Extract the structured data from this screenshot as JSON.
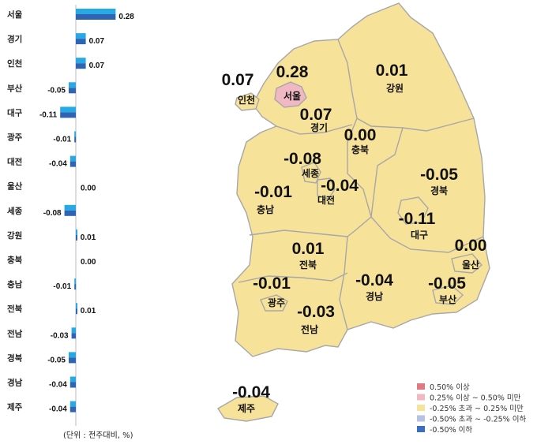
{
  "chart_data": [
    {
      "type": "bar",
      "orientation": "horizontal",
      "categories": [
        "서울",
        "경기",
        "인천",
        "부산",
        "대구",
        "광주",
        "대전",
        "울산",
        "세종",
        "강원",
        "충북",
        "충남",
        "전북",
        "전남",
        "경북",
        "경남",
        "제주"
      ],
      "values": [
        0.28,
        0.07,
        0.07,
        -0.05,
        -0.11,
        -0.01,
        -0.04,
        0.0,
        -0.08,
        0.01,
        0.0,
        -0.01,
        0.01,
        -0.03,
        -0.05,
        -0.04,
        -0.04
      ],
      "value_labels": [
        "0.28",
        "0.07",
        "0.07",
        "-0.05",
        "-0.11",
        "-0.01",
        "-0.04",
        "0.00",
        "-0.08",
        "0.01",
        "0.00",
        "-0.01",
        "0.01",
        "-0.03",
        "-0.05",
        "-0.04",
        "-0.04"
      ],
      "series_colors": [
        "#27a9e6",
        "#2f64b4"
      ],
      "unit_note": "(단위 : 전주대비, %)",
      "grid": false
    },
    {
      "type": "choropleth_map",
      "regions": [
        {
          "id": "seoul",
          "name": "서울",
          "value": "0.28",
          "class": "0.25% 이상 ~ 0.50% 미만"
        },
        {
          "id": "incheon",
          "name": "인천",
          "value": "0.07",
          "class": "-0.25% 초과 ~ 0.25% 미만"
        },
        {
          "id": "gyeonggi",
          "name": "경기",
          "value": "0.07",
          "class": "-0.25% 초과 ~ 0.25% 미만"
        },
        {
          "id": "gangwon",
          "name": "강원",
          "value": "0.01",
          "class": "-0.25% 초과 ~ 0.25% 미만"
        },
        {
          "id": "chungbuk",
          "name": "충북",
          "value": "0.00",
          "class": "-0.25% 초과 ~ 0.25% 미만"
        },
        {
          "id": "sejong",
          "name": "세종",
          "value": "-0.08",
          "class": "-0.25% 초과 ~ 0.25% 미만"
        },
        {
          "id": "daejeon",
          "name": "대전",
          "value": "-0.04",
          "class": "-0.25% 초과 ~ 0.25% 미만"
        },
        {
          "id": "chungnam",
          "name": "충남",
          "value": "-0.01",
          "class": "-0.25% 초과 ~ 0.25% 미만"
        },
        {
          "id": "gyeongbuk",
          "name": "경북",
          "value": "-0.05",
          "class": "-0.25% 초과 ~ 0.25% 미만"
        },
        {
          "id": "daegu",
          "name": "대구",
          "value": "-0.11",
          "class": "-0.25% 초과 ~ 0.25% 미만"
        },
        {
          "id": "jeonbuk",
          "name": "전북",
          "value": "0.01",
          "class": "-0.25% 초과 ~ 0.25% 미만"
        },
        {
          "id": "ulsan",
          "name": "울산",
          "value": "0.00",
          "class": "-0.25% 초과 ~ 0.25% 미만"
        },
        {
          "id": "gwangju",
          "name": "광주",
          "value": "-0.01",
          "class": "-0.25% 초과 ~ 0.25% 미만"
        },
        {
          "id": "gyeongnam",
          "name": "경남",
          "value": "-0.04",
          "class": "-0.25% 초과 ~ 0.25% 미만"
        },
        {
          "id": "busan",
          "name": "부산",
          "value": "-0.05",
          "class": "-0.25% 초과 ~ 0.25% 미만"
        },
        {
          "id": "jeonnam",
          "name": "전남",
          "value": "-0.03",
          "class": "-0.25% 초과 ~ 0.25% 미만"
        },
        {
          "id": "jeju",
          "name": "제주",
          "value": "-0.04",
          "class": "-0.25% 초과 ~ 0.25% 미만"
        }
      ],
      "legend": [
        {
          "label": "0.50% 이상",
          "color": "#e07a80"
        },
        {
          "label": "0.25% 이상 ~ 0.50% 미만",
          "color": "#f0b8c2"
        },
        {
          "label": "-0.25% 초과 ~ 0.25% 미만",
          "color": "#f7e29a"
        },
        {
          "label": "-0.50% 초과 ~ -0.25% 이하",
          "color": "#b6c2e3"
        },
        {
          "label": "-0.50% 이하",
          "color": "#3b6fbe"
        }
      ],
      "legend_position": "bottom-right"
    }
  ]
}
